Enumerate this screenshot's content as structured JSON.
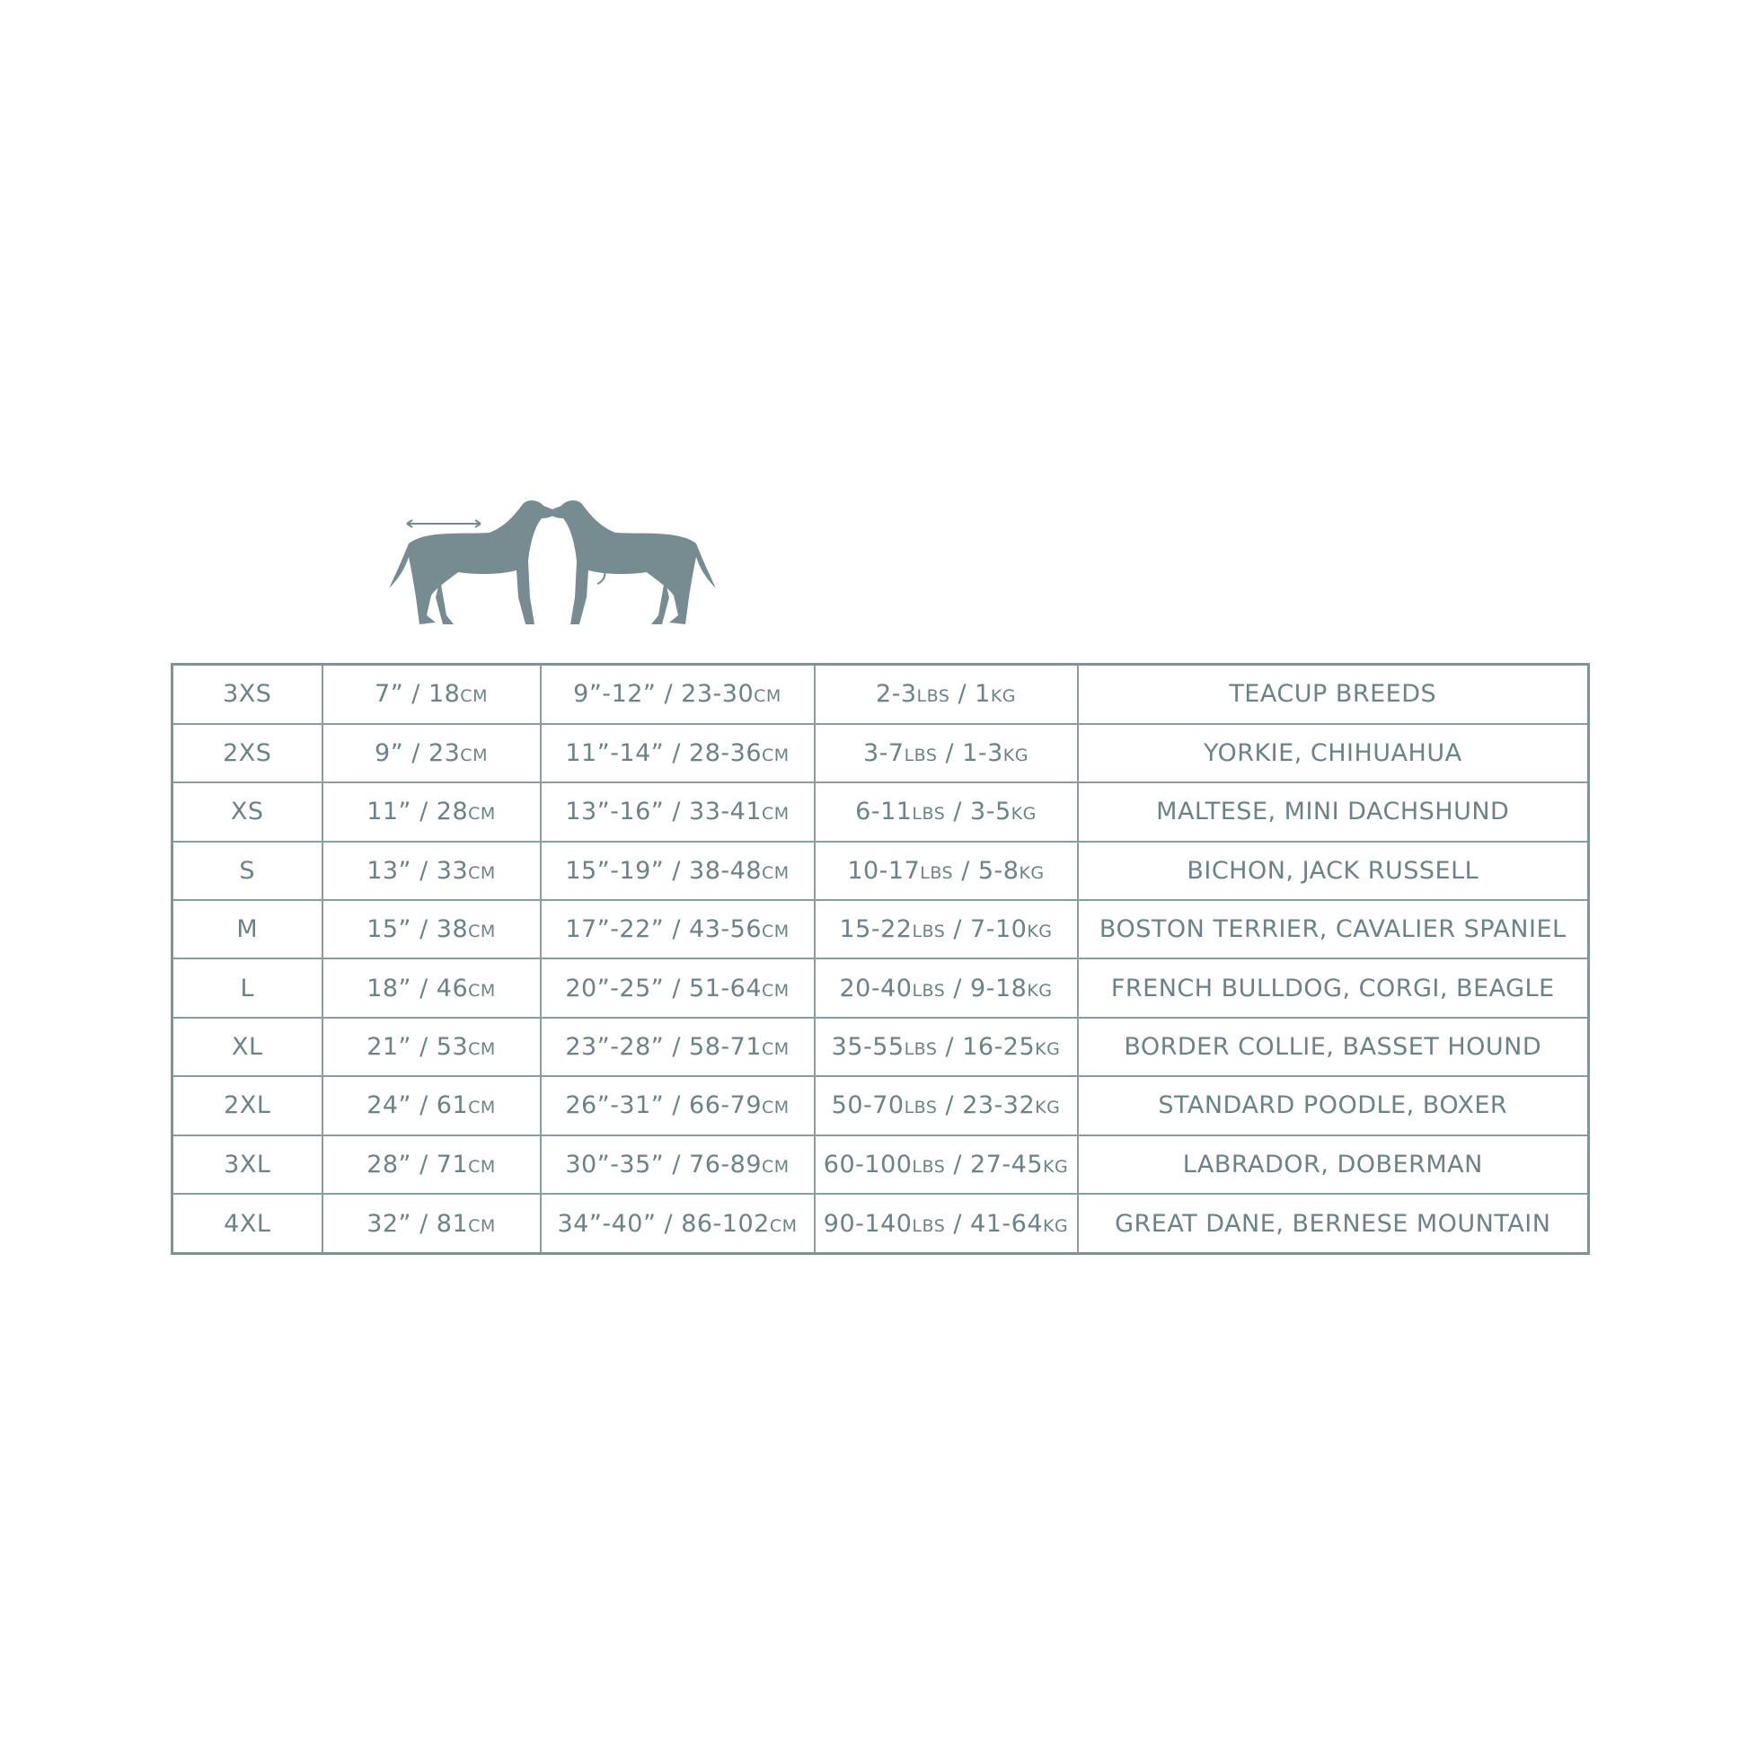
{
  "colors": {
    "ink": "#6d8286",
    "dog": "#778c91",
    "border": "#7f9296"
  },
  "icons": [
    "dog-back-length-icon",
    "dog-chest-girth-icon"
  ],
  "rows": [
    {
      "size": "3XS",
      "back": "7” / 18cm",
      "girth": "9”-12” / 23-30cm",
      "weight": "2-3lbs / 1kg",
      "breeds": "TEACUP BREEDS"
    },
    {
      "size": "2XS",
      "back": "9” / 23cm",
      "girth": "11”-14” / 28-36cm",
      "weight": "3-7lbs / 1-3kg",
      "breeds": "YORKIE, CHIHUAHUA"
    },
    {
      "size": "XS",
      "back": "11” / 28cm",
      "girth": "13”-16” / 33-41cm",
      "weight": "6-11lbs / 3-5kg",
      "breeds": "MALTESE, MINI DACHSHUND"
    },
    {
      "size": "S",
      "back": "13” / 33cm",
      "girth": "15”-19” / 38-48cm",
      "weight": "10-17lbs / 5-8kg",
      "breeds": "BICHON, JACK RUSSELL"
    },
    {
      "size": "M",
      "back": "15” / 38cm",
      "girth": "17”-22” / 43-56cm",
      "weight": "15-22lbs / 7-10kg",
      "breeds": "BOSTON TERRIER, CAVALIER SPANIEL"
    },
    {
      "size": "L",
      "back": "18” / 46cm",
      "girth": "20”-25” / 51-64cm",
      "weight": "20-40lbs / 9-18kg",
      "breeds": "FRENCH BULLDOG, CORGI, BEAGLE"
    },
    {
      "size": "XL",
      "back": "21” / 53cm",
      "girth": "23”-28” / 58-71cm",
      "weight": "35-55lbs / 16-25kg",
      "breeds": "BORDER COLLIE, BASSET HOUND"
    },
    {
      "size": "2XL",
      "back": "24” / 61cm",
      "girth": "26”-31” / 66-79cm",
      "weight": "50-70lbs / 23-32kg",
      "breeds": "STANDARD POODLE, BOXER"
    },
    {
      "size": "3XL",
      "back": "28” / 71cm",
      "girth": "30”-35” / 76-89cm",
      "weight": "60-100lbs / 27-45kg",
      "breeds": "LABRADOR, DOBERMAN"
    },
    {
      "size": "4XL",
      "back": "32” / 81cm",
      "girth": "34”-40” / 86-102cm",
      "weight": "90-140lbs / 41-64kg",
      "breeds": "GREAT DANE, BERNESE MOUNTAIN"
    }
  ]
}
